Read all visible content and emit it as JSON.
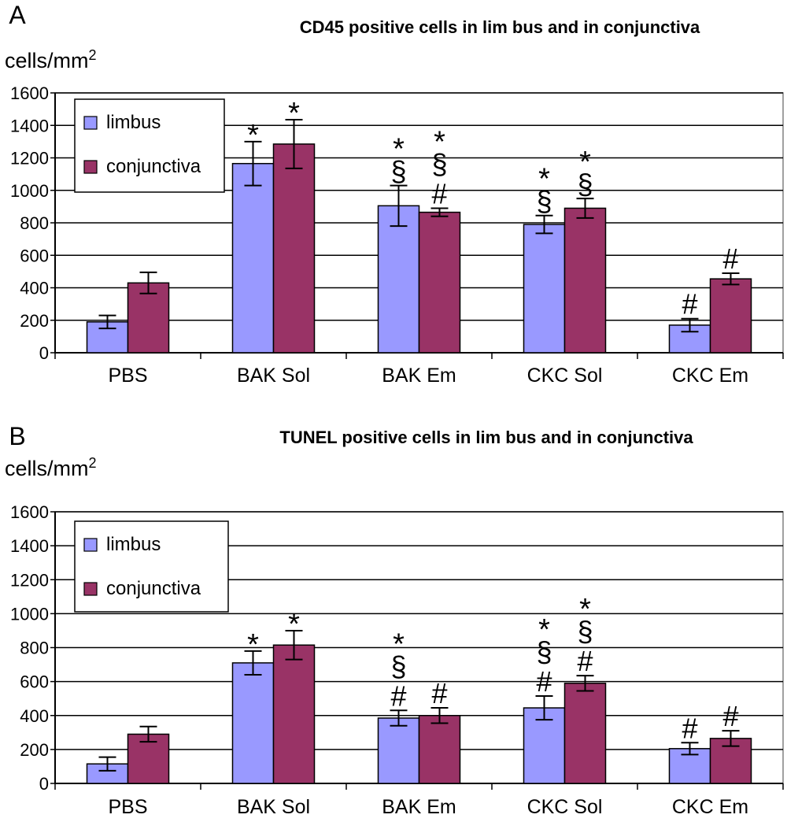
{
  "chart_data": [
    {
      "type": "bar",
      "panel_label": "A",
      "title": "CD45 positive cells in lim bus and in conjunctiva",
      "ylabel_base": "cells/mm",
      "ylabel_sup": "2",
      "ylim": [
        0,
        1600
      ],
      "yticks": [
        0,
        200,
        400,
        600,
        800,
        1000,
        1200,
        1400,
        1600
      ],
      "grid": true,
      "legend_position": "top-left",
      "categories": [
        "PBS",
        "BAK Sol",
        "BAK Em",
        "CKC Sol",
        "CKC Em"
      ],
      "series": [
        {
          "name": "limbus",
          "color": "#9999ff",
          "values": [
            190,
            1165,
            905,
            790,
            170
          ],
          "errors": [
            40,
            135,
            125,
            55,
            40
          ],
          "annotations": [
            "",
            "*",
            "*\n§",
            "*\n§",
            "#"
          ]
        },
        {
          "name": "conjunctiva",
          "color": "#993366",
          "values": [
            430,
            1285,
            865,
            890,
            455
          ],
          "errors": [
            65,
            150,
            25,
            60,
            35
          ],
          "annotations": [
            "",
            "*",
            "*\n§\n#",
            "*\n§",
            "#"
          ]
        }
      ]
    },
    {
      "type": "bar",
      "panel_label": "B",
      "title": "TUNEL positive cells in lim bus and in conjunctiva",
      "ylabel_base": "cells/mm",
      "ylabel_sup": "2",
      "ylim": [
        0,
        1600
      ],
      "yticks": [
        0,
        200,
        400,
        600,
        800,
        1000,
        1200,
        1400,
        1600
      ],
      "grid": true,
      "legend_position": "top-left",
      "categories": [
        "PBS",
        "BAK Sol",
        "BAK Em",
        "CKC Sol",
        "CKC Em"
      ],
      "series": [
        {
          "name": "limbus",
          "color": "#9999ff",
          "values": [
            115,
            710,
            385,
            445,
            205
          ],
          "errors": [
            40,
            70,
            45,
            70,
            35
          ],
          "annotations": [
            "",
            "*",
            "*\n§\n#",
            "*\n§\n#",
            "#"
          ]
        },
        {
          "name": "conjunctiva",
          "color": "#993366",
          "values": [
            290,
            815,
            400,
            590,
            265
          ],
          "errors": [
            45,
            85,
            45,
            45,
            45
          ],
          "annotations": [
            "",
            "*",
            "#",
            "*\n§\n#",
            "#"
          ]
        }
      ]
    }
  ]
}
